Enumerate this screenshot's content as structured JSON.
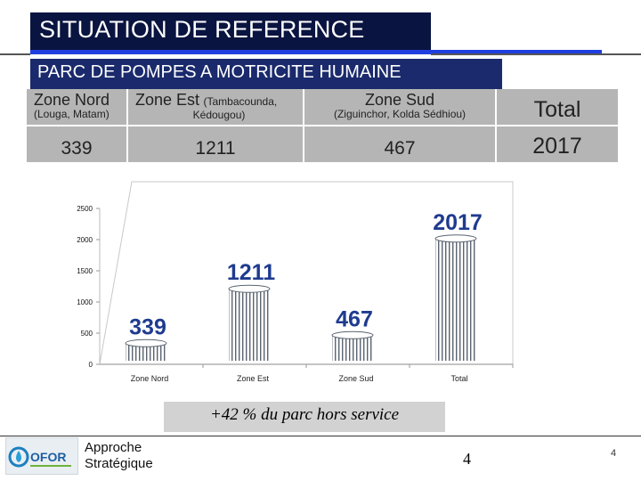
{
  "header": {
    "title": "SITUATION DE REFERENCE",
    "subtitle": "PARC DE POMPES A MOTRICITE HUMAINE"
  },
  "table": {
    "columns": [
      {
        "name": "Zone Nord",
        "detail": "(Louga, Matam)",
        "value": "339"
      },
      {
        "name": "Zone Est",
        "detail_inline": "(Tambacounda,",
        "detail": "Kédougou)",
        "value": "1211"
      },
      {
        "name": "Zone Sud",
        "detail": "(Ziguinchor, Kolda Sédhiou)",
        "value": "467"
      },
      {
        "name": "Total",
        "value": "2017"
      }
    ]
  },
  "chart_data": {
    "type": "bar",
    "categories": [
      "Zone Nord",
      "Zone Est",
      "Zone Sud",
      "Total"
    ],
    "values": [
      339,
      1211,
      467,
      2017
    ],
    "data_labels": [
      "339",
      "1211",
      "467",
      "2017"
    ],
    "yticks": [
      "0",
      "500",
      "1000",
      "1500",
      "2000",
      "2500"
    ],
    "ylim": [
      0,
      2500
    ],
    "title": "",
    "xlabel": "",
    "ylabel": ""
  },
  "note": "+42 % du parc hors service",
  "footer": {
    "logo_text": "OFOR",
    "line1": "Approche",
    "line2": "Stratégique",
    "center_number": "4",
    "page_number": "4"
  },
  "colors": {
    "title_bg": "#0a1440",
    "subtitle_bg": "#1a2a6c",
    "accent_bar": "#1f3fe0",
    "data_label": "#1f3b8f"
  }
}
